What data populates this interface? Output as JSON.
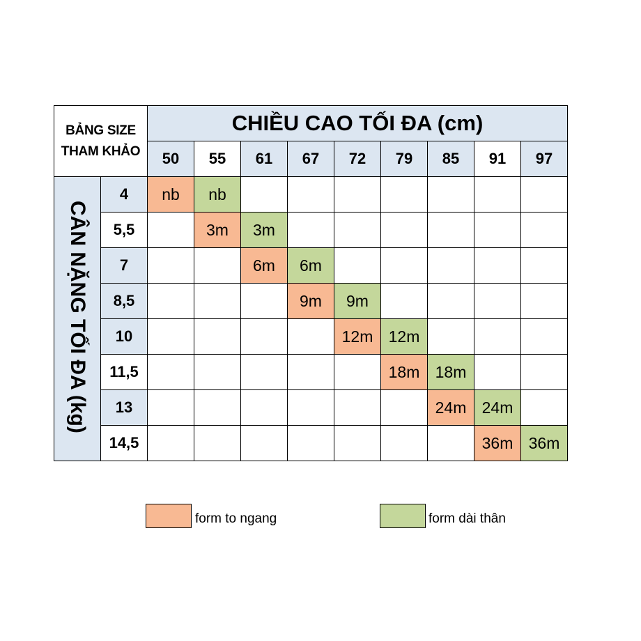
{
  "corner_label": [
    "BẢNG SIZE",
    "THAM KHẢO"
  ],
  "height_title": "CHIỀU CAO TỐI ĐA (cm)",
  "weight_title": "CÂN NẶNG TỐI ĐA (kg)",
  "heights": [
    "50",
    "55",
    "61",
    "67",
    "72",
    "79",
    "85",
    "91",
    "97"
  ],
  "rows": [
    {
      "weight": "4",
      "cells": [
        "nb",
        "nb",
        "",
        "",
        "",
        "",
        "",
        "",
        ""
      ]
    },
    {
      "weight": "5,5",
      "cells": [
        "",
        "3m",
        "3m",
        "",
        "",
        "",
        "",
        "",
        ""
      ]
    },
    {
      "weight": "7",
      "cells": [
        "",
        "",
        "6m",
        "6m",
        "",
        "",
        "",
        "",
        ""
      ]
    },
    {
      "weight": "8,5",
      "cells": [
        "",
        "",
        "",
        "9m",
        "9m",
        "",
        "",
        "",
        ""
      ]
    },
    {
      "weight": "10",
      "cells": [
        "",
        "",
        "",
        "",
        "12m",
        "12m",
        "",
        "",
        ""
      ]
    },
    {
      "weight": "11,5",
      "cells": [
        "",
        "",
        "",
        "",
        "",
        "18m",
        "18m",
        "",
        ""
      ]
    },
    {
      "weight": "13",
      "cells": [
        "",
        "",
        "",
        "",
        "",
        "",
        "24m",
        "24m",
        ""
      ]
    },
    {
      "weight": "14,5",
      "cells": [
        "",
        "",
        "",
        "",
        "",
        "",
        "",
        "36m",
        "36m"
      ]
    }
  ],
  "legend": [
    {
      "label": "form to ngang",
      "color": "#f8b993"
    },
    {
      "label": "form dài thân",
      "color": "#c4d79b"
    }
  ],
  "colors": {
    "header_bg": "#dce6f1",
    "orange": "#f8b993",
    "green": "#c4d79b"
  }
}
